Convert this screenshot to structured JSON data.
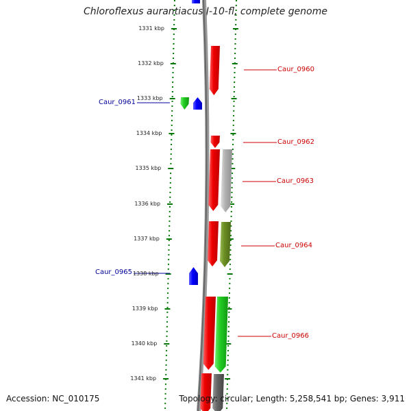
{
  "title": "Chloroflexus aurantiacus J-10-fl, complete genome",
  "footer": {
    "accession": "Accession: NC_010175",
    "summary": "Topology: circular; Length: 5,258,541 bp; Genes: 3,911"
  },
  "ruler": {
    "labels": [
      "1331 kbp",
      "1332 kbp",
      "1333 kbp",
      "1334 kbp",
      "1335 kbp",
      "1336 kbp",
      "1337 kbp",
      "1338 kbp",
      "1339 kbp",
      "1340 kbp",
      "1341 kbp"
    ]
  },
  "colors": {
    "red": "#e60000",
    "blue": "#0000ff",
    "green": "#22cc22",
    "grey": "#aaaaaa",
    "olive": "#6b8e23",
    "darkgrey": "#555555",
    "ruler_green": "#007700",
    "backbone": "#888888",
    "label_right": "#cc0000",
    "label_left": "#000099"
  },
  "gene_labels": [
    {
      "name": "Caur_0960",
      "side": "right"
    },
    {
      "name": "Caur_0961",
      "side": "left"
    },
    {
      "name": "Caur_0962",
      "side": "right"
    },
    {
      "name": "Caur_0963",
      "side": "right"
    },
    {
      "name": "Caur_0964",
      "side": "right"
    },
    {
      "name": "Caur_0965",
      "side": "left"
    },
    {
      "name": "Caur_0966",
      "side": "right"
    }
  ],
  "genes": [
    {
      "color": "blue",
      "strand": "-",
      "track": "inner"
    },
    {
      "color": "red",
      "strand": "+",
      "track": "outer"
    },
    {
      "color": "green",
      "strand": "+",
      "track": "far_inner"
    },
    {
      "color": "blue",
      "strand": "-",
      "track": "inner"
    },
    {
      "color": "red",
      "strand": "+",
      "track": "outer"
    },
    {
      "color": "red",
      "strand": "+",
      "track": "outer"
    },
    {
      "color": "grey",
      "strand": "+",
      "track": "outer2"
    },
    {
      "color": "red",
      "strand": "+",
      "track": "outer"
    },
    {
      "color": "olive",
      "strand": "+",
      "track": "outer2"
    },
    {
      "color": "blue",
      "strand": "-",
      "track": "inner"
    },
    {
      "color": "red",
      "strand": "+",
      "track": "outer"
    },
    {
      "color": "green",
      "strand": "+",
      "track": "outer2"
    },
    {
      "color": "red",
      "strand": "+",
      "track": "outer"
    },
    {
      "color": "darkgrey",
      "strand": "+",
      "track": "outer2"
    }
  ]
}
